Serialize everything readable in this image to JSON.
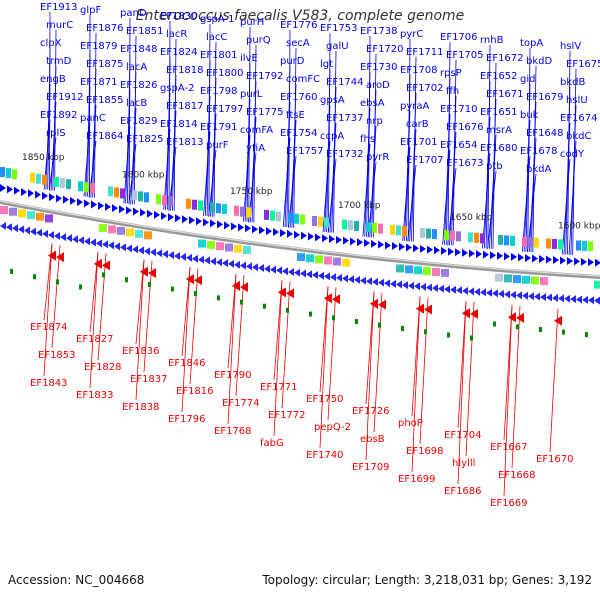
{
  "map": {
    "title": "Enterococcus faecalis V583, complete genome",
    "accession": "Accession: NC_004668",
    "summary": "Topology: circular; Length: 3,218,031 bp; Genes: 3,192",
    "colors": {
      "forward": "#0000ee",
      "reverse": "#ee0000",
      "backbone": "#999999",
      "other": "#008800"
    },
    "scale_labels": [
      "1850 kbp",
      "1800 kbp",
      "1750 kbp",
      "1700 kbp",
      "1650 kbp",
      "1600 kbp"
    ],
    "forward_labels": [
      "EF1913",
      "murC",
      "clpX",
      "trmD",
      "engB",
      "EF1912",
      "EF1892",
      "rplS",
      "glpF",
      "EF1876",
      "EF1879",
      "EF1875",
      "EF1871",
      "EF1855",
      "panC",
      "EF1864",
      "panD",
      "EF1851",
      "EF1848",
      "lacA",
      "EF1826",
      "lacB",
      "EF1829",
      "EF1825",
      "EF1830",
      "lacR",
      "EF1824",
      "EF1818",
      "gspA-2",
      "EF1817",
      "EF1814",
      "EF1813",
      "gspA-1",
      "lacC",
      "EF1801",
      "EF1800",
      "EF1798",
      "EF1797",
      "EF1791",
      "purF",
      "purH",
      "purQ",
      "ilvE",
      "EF1792",
      "purL",
      "EF1775",
      "comFA",
      "yfiA",
      "EF1776",
      "secA",
      "purD",
      "comFC",
      "EF1760",
      "ftsE",
      "EF1754",
      "EF1757",
      "EF1753",
      "galU",
      "lgt",
      "EF1744",
      "gpsA",
      "EF1737",
      "ccpA",
      "EF1732",
      "EF1738",
      "EF1720",
      "EF1730",
      "aroD",
      "ebsA",
      "nrp",
      "fhs",
      "pyrR",
      "pyrC",
      "EF1711",
      "EF1708",
      "EF1702",
      "pyraA",
      "carB",
      "EF1701",
      "EF1707",
      "EF1706",
      "EF1705",
      "rpsP",
      "ffh",
      "EF1710",
      "EF1676",
      "EF1654",
      "EF1673",
      "rnhB",
      "EF1672",
      "EF1652",
      "EF1671",
      "EF1651",
      "msrA",
      "EF1680",
      "ptb",
      "topA",
      "bkdD",
      "gid",
      "EF1679",
      "buk",
      "EF1648",
      "EF1678",
      "bkdA",
      "hslV",
      "EF1675",
      "bkdB",
      "hslU",
      "EF1674",
      "bkdC",
      "codY"
    ],
    "reverse_labels": [
      "EF1874",
      "EF1853",
      "EF1843",
      "EF1827",
      "EF1828",
      "EF1833",
      "EF1836",
      "EF1837",
      "EF1838",
      "EF1846",
      "EF1816",
      "EF1796",
      "EF1790",
      "EF1774",
      "EF1768",
      "EF1771",
      "EF1772",
      "fabG",
      "EF1750",
      "pepQ-2",
      "EF1740",
      "EF1726",
      "ebsB",
      "EF1709",
      "phoP",
      "EF1698",
      "EF1699",
      "EF1704",
      "hlylll",
      "EF1686",
      "EF1667",
      "EF1668",
      "EF1669",
      "EF1670"
    ]
  }
}
